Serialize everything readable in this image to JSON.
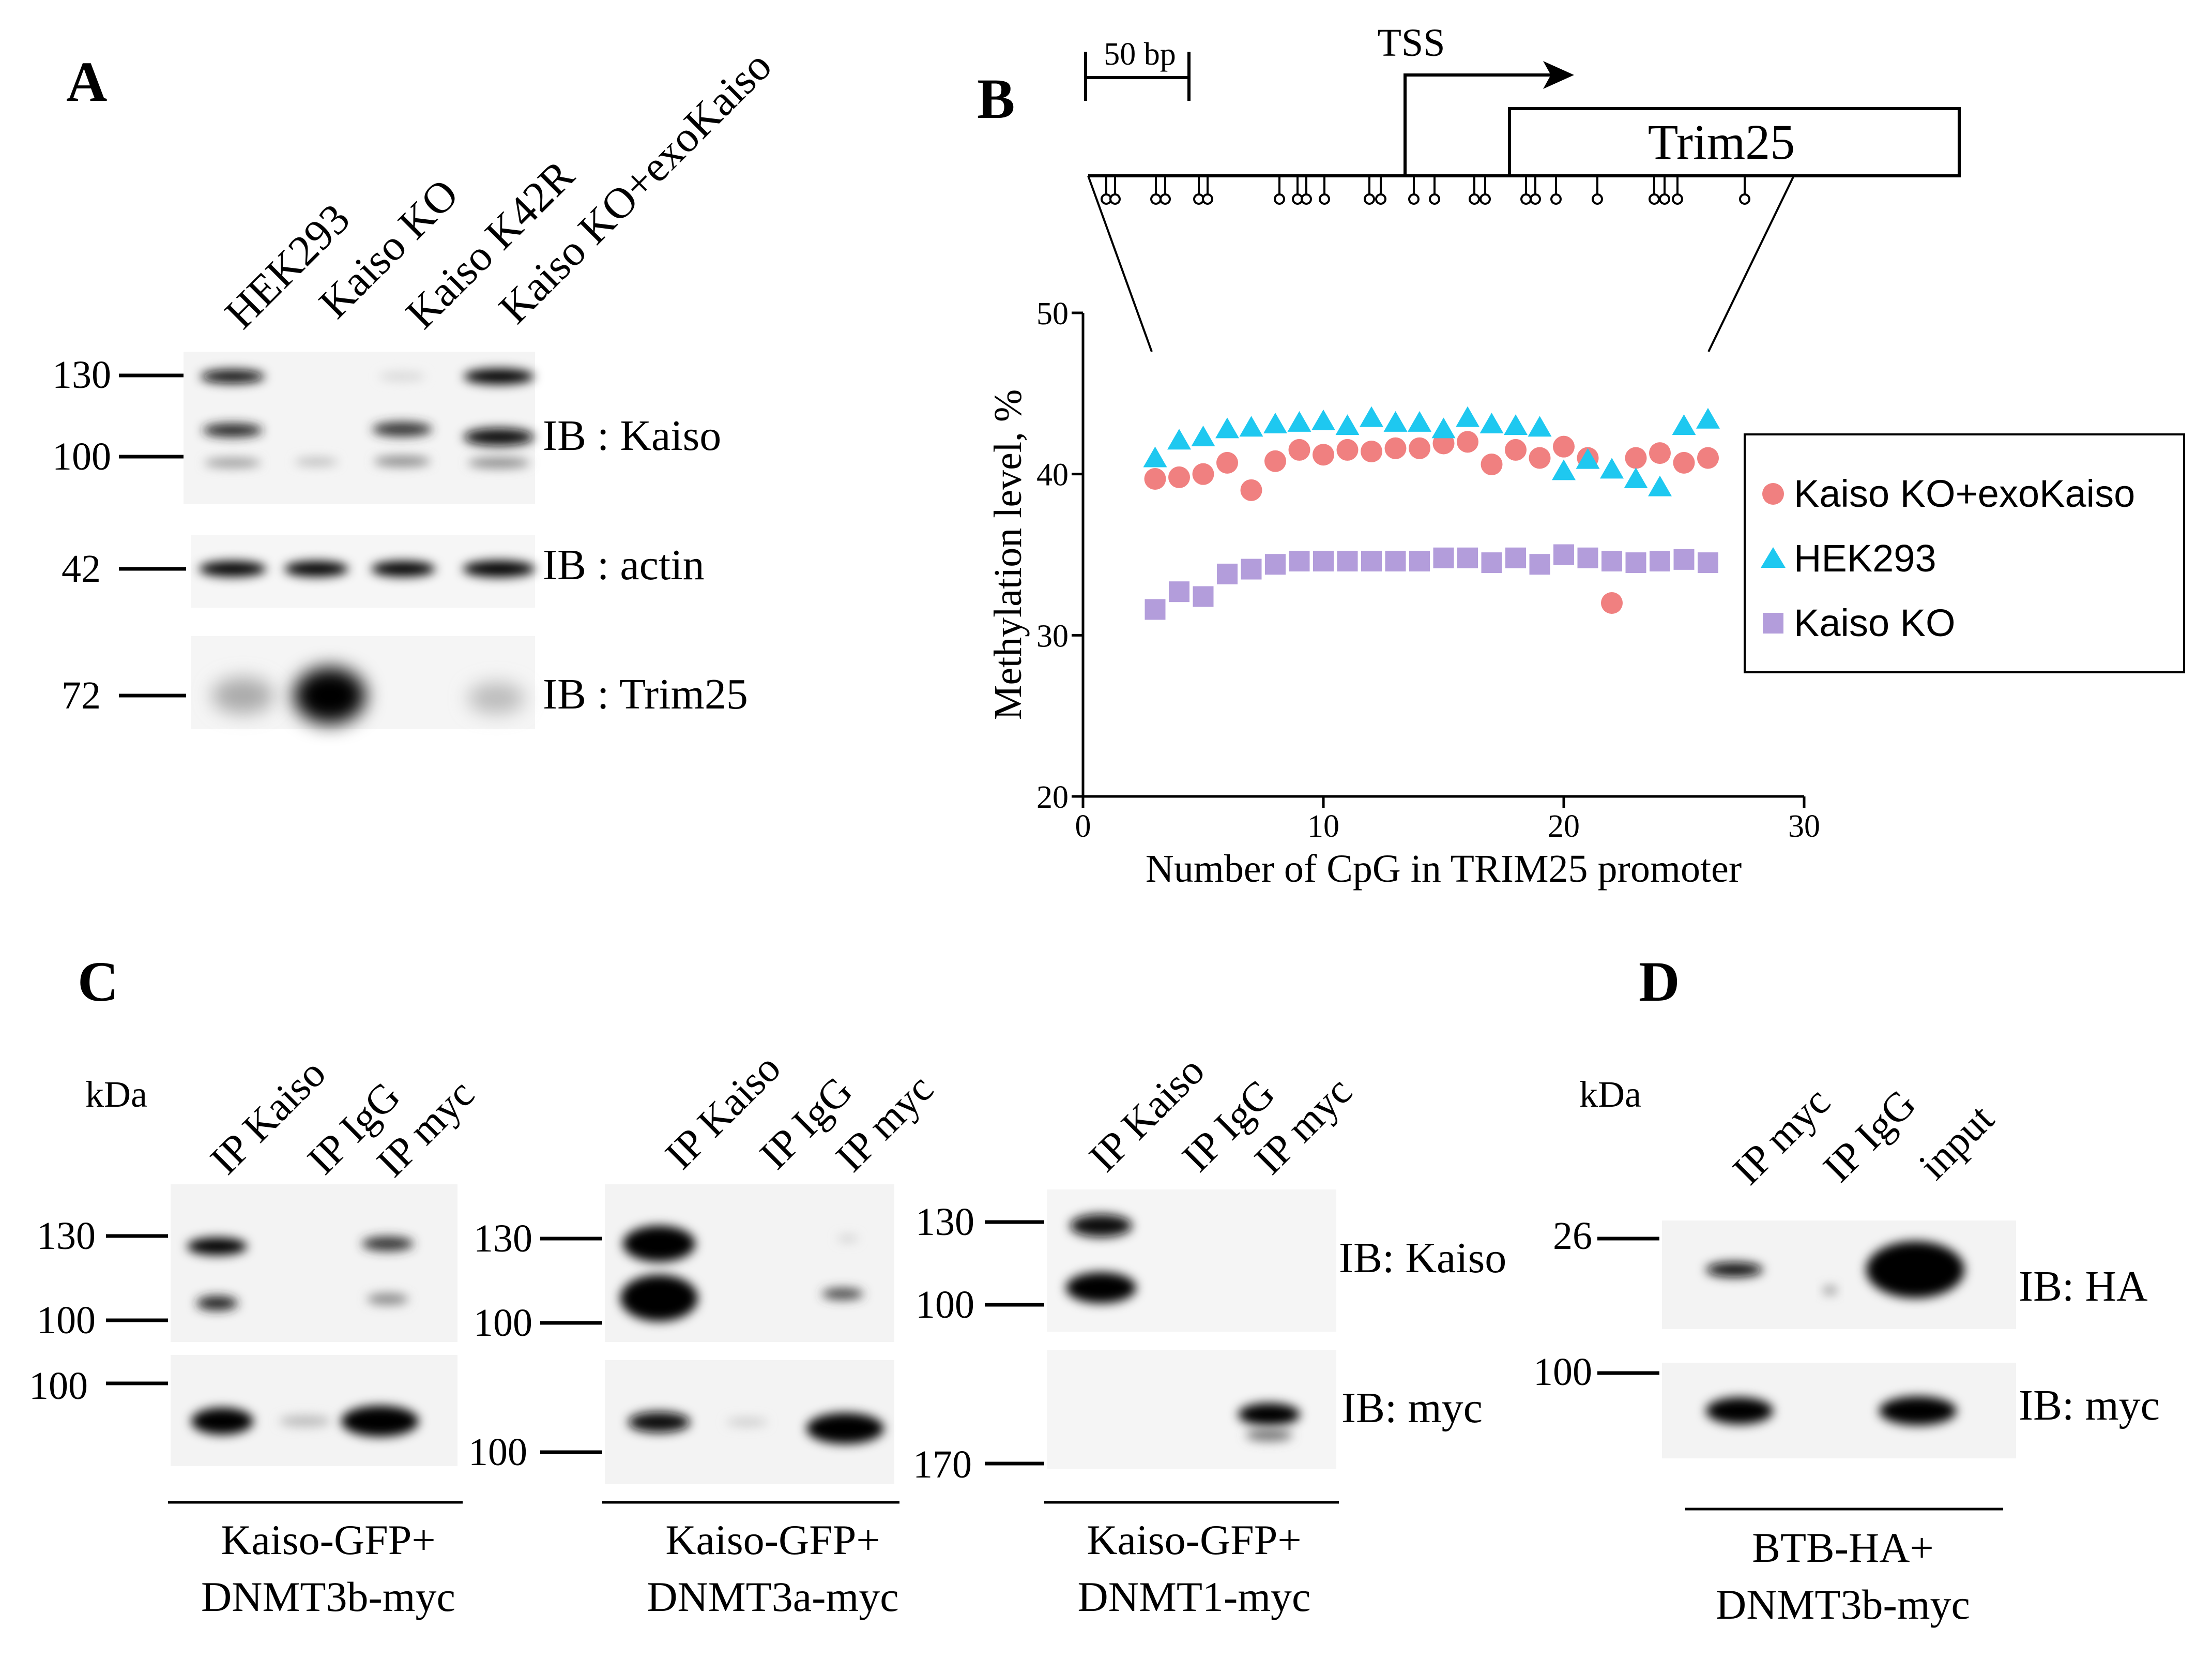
{
  "panels": {
    "A": {
      "label": "A",
      "lanes": [
        "HEK293",
        "Kaiso KO",
        "Kaiso K42R",
        "Kaiso KO+exoKaiso"
      ],
      "blots": [
        {
          "ib": "IB : Kaiso",
          "markers": [
            "130",
            "100"
          ]
        },
        {
          "ib": "IB : actin",
          "markers": [
            "42"
          ]
        },
        {
          "ib": "IB : Trim25",
          "markers": [
            "72"
          ]
        }
      ]
    },
    "B": {
      "label": "B",
      "scale_label": "50 bp",
      "tss_label": "TSS",
      "gene_label": "Trim25"
    },
    "C": {
      "label": "C",
      "kda": "kDa",
      "lanes": [
        "IP Kaiso",
        "IP IgG",
        "IP myc"
      ],
      "ib_top": "IB: Kaiso",
      "ib_bottom": "IB: myc",
      "groups": [
        {
          "line1": "Kaiso-GFP+",
          "line2": "DNMT3b-myc",
          "markers_top": [
            "130",
            "100"
          ],
          "markers_bottom": [
            "100"
          ]
        },
        {
          "line1": "Kaiso-GFP+",
          "line2": "DNMT3a-myc",
          "markers_top": [
            "130",
            "100"
          ],
          "markers_bottom": [
            "100"
          ]
        },
        {
          "line1": "Kaiso-GFP+",
          "line2": "DNMT1-myc",
          "markers_top": [
            "130",
            "100"
          ],
          "markers_bottom": [
            "170"
          ]
        }
      ]
    },
    "D": {
      "label": "D",
      "kda": "kDa",
      "lanes": [
        "IP myc",
        "IP IgG",
        "input"
      ],
      "ib_top": "IB: HA",
      "ib_bottom": "IB: myc",
      "markers_top": [
        "26"
      ],
      "markers_bottom": [
        "100"
      ],
      "caption_line1": "BTB-HA+",
      "caption_line2": "DNMT3b-myc"
    }
  },
  "colors": {
    "kaiso_ko_exokaiso": "#f08080",
    "hek293": "#1ec8f0",
    "kaiso_ko": "#b39ddb"
  },
  "chart_data": {
    "type": "scatter",
    "title": "",
    "xlabel": "Number of CpG in TRIM25 promoter",
    "ylabel": "Methylation level, %",
    "xlim": [
      0,
      30
    ],
    "ylim": [
      20,
      50
    ],
    "xticks": [
      0,
      10,
      20,
      30
    ],
    "yticks": [
      20,
      30,
      40,
      50
    ],
    "legend_position": "right",
    "series": [
      {
        "name": "Kaiso KO+exoKaiso",
        "marker": "circle",
        "x": [
          3,
          4,
          5,
          6,
          7,
          8,
          9,
          10,
          11,
          12,
          13,
          14,
          15,
          16,
          17,
          18,
          19,
          20,
          21,
          22,
          23,
          24,
          25,
          26
        ],
        "values": [
          39.7,
          39.8,
          40.0,
          40.7,
          39.0,
          40.8,
          41.5,
          41.2,
          41.5,
          41.4,
          41.6,
          41.6,
          41.9,
          42.0,
          40.6,
          41.5,
          41.0,
          41.7,
          41.0,
          32.0,
          41.0,
          41.3,
          40.7,
          41.0
        ]
      },
      {
        "name": "HEK293",
        "marker": "triangle",
        "x": [
          3,
          4,
          5,
          6,
          7,
          8,
          9,
          10,
          11,
          12,
          13,
          14,
          15,
          16,
          17,
          18,
          19,
          20,
          21,
          22,
          23,
          24,
          25,
          26
        ],
        "values": [
          41.0,
          42.1,
          42.3,
          42.8,
          42.9,
          43.1,
          43.2,
          43.3,
          43.0,
          43.5,
          43.2,
          43.2,
          42.8,
          43.5,
          43.1,
          43.0,
          42.9,
          40.2,
          40.9,
          40.3,
          39.7,
          39.2,
          43.0,
          43.4
        ]
      },
      {
        "name": "Kaiso KO",
        "marker": "square",
        "x": [
          3,
          4,
          5,
          6,
          7,
          8,
          9,
          10,
          11,
          12,
          13,
          14,
          15,
          16,
          17,
          18,
          19,
          20,
          21,
          22,
          23,
          24,
          25,
          26
        ],
        "values": [
          31.6,
          32.7,
          32.4,
          33.8,
          34.1,
          34.4,
          34.6,
          34.6,
          34.6,
          34.6,
          34.6,
          34.6,
          34.8,
          34.8,
          34.5,
          34.8,
          34.4,
          35.0,
          34.8,
          34.6,
          34.5,
          34.6,
          34.7,
          34.5
        ]
      }
    ]
  }
}
